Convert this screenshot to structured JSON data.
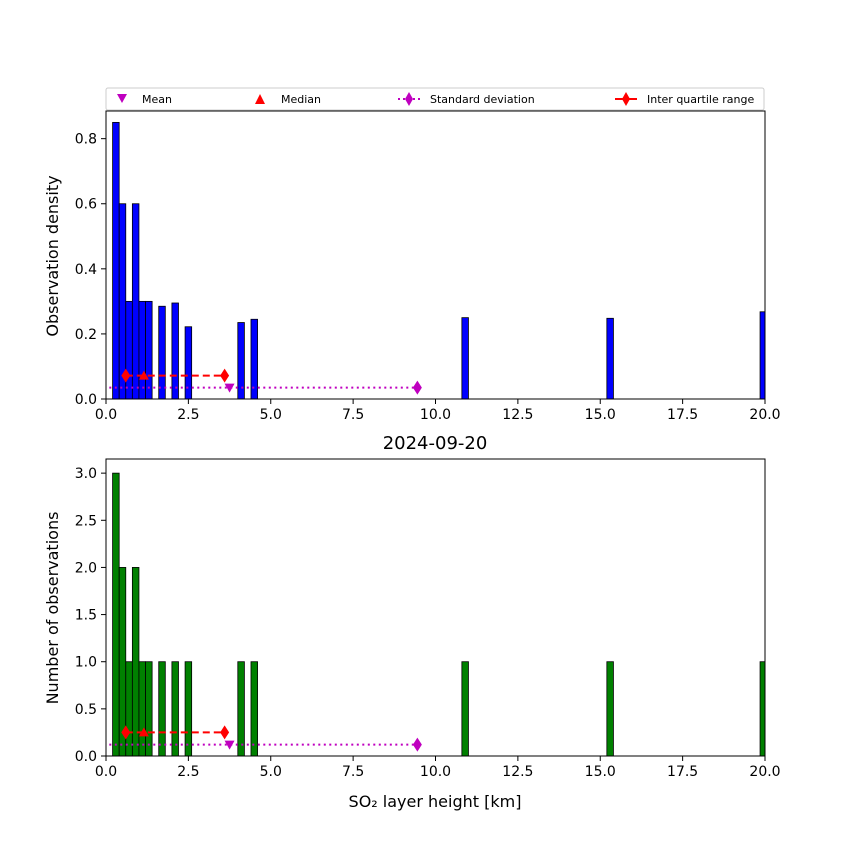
{
  "legend": {
    "placement": "top",
    "items": [
      {
        "label": "Mean",
        "marker": "triangle-down",
        "color": "#bf00bf"
      },
      {
        "label": "Median",
        "marker": "triangle-up",
        "color": "#ff0000"
      },
      {
        "label": "Standard deviation",
        "marker": "diamond",
        "line": "dotted",
        "color": "#bf00bf"
      },
      {
        "label": "Inter quartile range",
        "marker": "diamond",
        "line": "solid",
        "color": "#ff0000"
      }
    ]
  },
  "chart_data": [
    {
      "type": "bar",
      "title": "",
      "xlabel": "",
      "ylabel": "Observation density",
      "xlim": [
        0,
        20
      ],
      "ylim": [
        0,
        0.885
      ],
      "xticks": [
        "0.0",
        "2.5",
        "5.0",
        "7.5",
        "10.0",
        "12.5",
        "15.0",
        "17.5",
        "20.0"
      ],
      "yticks": [
        "0.0",
        "0.2",
        "0.4",
        "0.6",
        "0.8"
      ],
      "bar_color": "#0000ff",
      "bin_width": 0.2,
      "bins": [
        {
          "x": 0.3,
          "value": 0.85
        },
        {
          "x": 0.5,
          "value": 0.6
        },
        {
          "x": 0.7,
          "value": 0.3
        },
        {
          "x": 0.9,
          "value": 0.6
        },
        {
          "x": 1.1,
          "value": 0.3
        },
        {
          "x": 1.3,
          "value": 0.3
        },
        {
          "x": 1.7,
          "value": 0.285
        },
        {
          "x": 2.1,
          "value": 0.295
        },
        {
          "x": 2.5,
          "value": 0.222
        },
        {
          "x": 4.1,
          "value": 0.235
        },
        {
          "x": 4.5,
          "value": 0.245
        },
        {
          "x": 10.9,
          "value": 0.25
        },
        {
          "x": 15.3,
          "value": 0.248
        },
        {
          "x": 19.95,
          "value": 0.268
        }
      ],
      "stats": {
        "mean": {
          "x": 3.75,
          "y": 0.035
        },
        "median": {
          "x": 1.15,
          "y": 0.072
        },
        "std_range": {
          "x": [
            0.1,
            9.45
          ],
          "y": 0.035
        },
        "iqr_range": {
          "x": [
            0.6,
            3.6
          ],
          "y": 0.072
        }
      }
    },
    {
      "type": "bar",
      "title": "2024-09-20",
      "xlabel": "SO₂ layer height [km]",
      "ylabel": "Number of observations",
      "xlim": [
        0,
        20
      ],
      "ylim": [
        0,
        3.15
      ],
      "xticks": [
        "0.0",
        "2.5",
        "5.0",
        "7.5",
        "10.0",
        "12.5",
        "15.0",
        "17.5",
        "20.0"
      ],
      "yticks": [
        "0.0",
        "0.5",
        "1.0",
        "1.5",
        "2.0",
        "2.5",
        "3.0"
      ],
      "bar_color": "#008000",
      "bin_width": 0.2,
      "bins": [
        {
          "x": 0.3,
          "value": 3
        },
        {
          "x": 0.5,
          "value": 2
        },
        {
          "x": 0.7,
          "value": 1
        },
        {
          "x": 0.9,
          "value": 2
        },
        {
          "x": 1.1,
          "value": 1
        },
        {
          "x": 1.3,
          "value": 1
        },
        {
          "x": 1.7,
          "value": 1
        },
        {
          "x": 2.1,
          "value": 1
        },
        {
          "x": 2.5,
          "value": 1
        },
        {
          "x": 4.1,
          "value": 1
        },
        {
          "x": 4.5,
          "value": 1
        },
        {
          "x": 10.9,
          "value": 1
        },
        {
          "x": 15.3,
          "value": 1
        },
        {
          "x": 19.95,
          "value": 1
        }
      ],
      "stats": {
        "mean": {
          "x": 3.75,
          "y": 0.12
        },
        "median": {
          "x": 1.15,
          "y": 0.25
        },
        "std_range": {
          "x": [
            0.1,
            9.45
          ],
          "y": 0.12
        },
        "iqr_range": {
          "x": [
            0.6,
            3.6
          ],
          "y": 0.25
        }
      }
    }
  ]
}
